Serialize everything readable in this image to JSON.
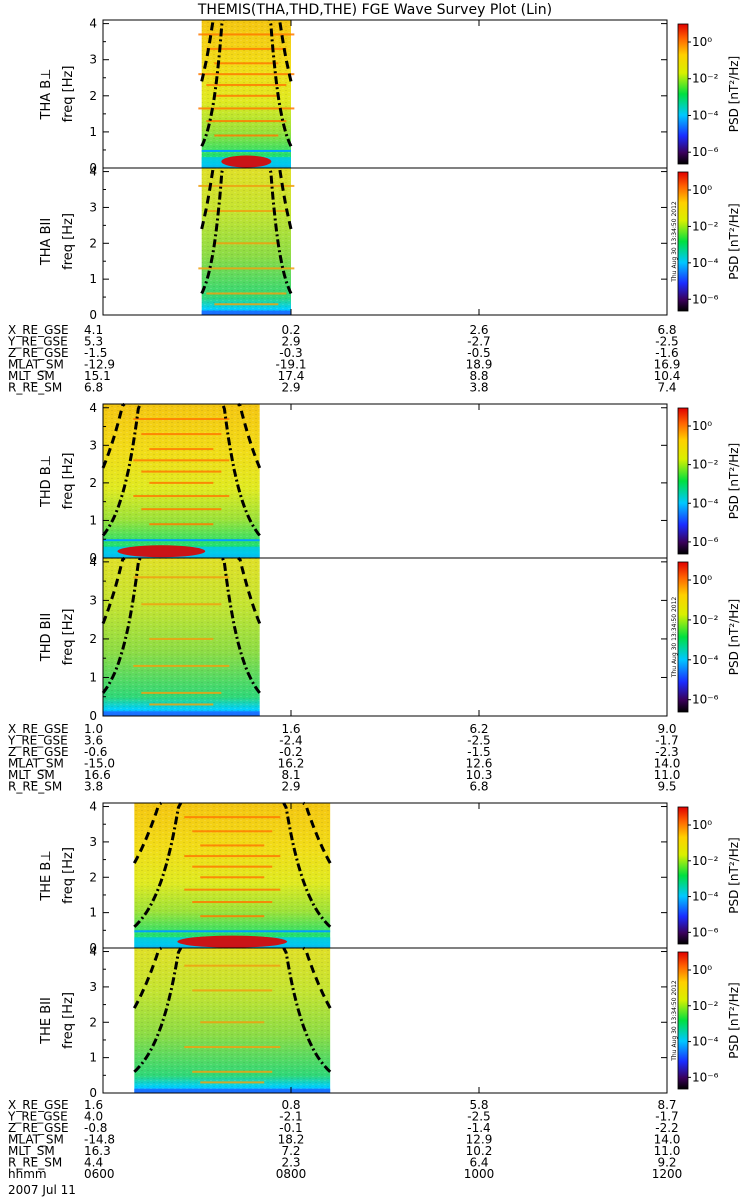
{
  "title": "THEMIS(THA,THD,THE) FGE Wave Survey Plot (Lin)",
  "footer": {
    "date": "2007 Jul 11",
    "stamp": "Thu Aug 30 13:34:50 2012"
  },
  "colorbar": {
    "label": "PSD [nT²/Hz]",
    "ticks": [
      "10⁰",
      "10⁻²",
      "10⁻⁴",
      "10⁻⁶"
    ]
  },
  "chart_data": [
    {
      "type": "heatmap",
      "probe": "THA",
      "panels": [
        {
          "ylabel_probe": "THA B⊥",
          "ylabel": "freq [Hz]"
        },
        {
          "ylabel_probe": "THA BII",
          "ylabel": "freq [Hz]"
        }
      ],
      "yticks": [
        "0",
        "1",
        "2",
        "3",
        "4"
      ],
      "ylim": [
        0,
        4.1
      ],
      "xlim": [
        "0600",
        "1200"
      ],
      "data_span": [
        "0703",
        "0800"
      ],
      "ephemeris": [
        {
          "name": "X_RE_GSE",
          "values": [
            "4.1",
            "0.2",
            "2.6",
            "6.8"
          ]
        },
        {
          "name": "Y_RE_GSE",
          "values": [
            "5.3",
            "2.9",
            "-2.7",
            "-2.5"
          ]
        },
        {
          "name": "Z_RE_GSE",
          "values": [
            "-1.5",
            "-0.3",
            "-0.5",
            "-1.6"
          ]
        },
        {
          "name": "MLAT_SM",
          "values": [
            "-12.9",
            "-19.1",
            "18.9",
            "16.9"
          ]
        },
        {
          "name": "MLT_SM",
          "values": [
            "15.1",
            "17.4",
            "8.8",
            "10.4"
          ]
        },
        {
          "name": "R_RE_SM",
          "values": [
            "6.8",
            "2.9",
            "3.8",
            "7.4"
          ]
        }
      ]
    },
    {
      "type": "heatmap",
      "probe": "THD",
      "panels": [
        {
          "ylabel_probe": "THD B⊥",
          "ylabel": "freq [Hz]"
        },
        {
          "ylabel_probe": "THD BII",
          "ylabel": "freq [Hz]"
        }
      ],
      "yticks": [
        "0",
        "1",
        "2",
        "3",
        "4"
      ],
      "ylim": [
        0,
        4.1
      ],
      "xlim": [
        "0600",
        "1200"
      ],
      "data_span": [
        "0600",
        "0740"
      ],
      "ephemeris": [
        {
          "name": "X_RE_GSE",
          "values": [
            "1.0",
            "1.6",
            "6.2",
            "9.0"
          ]
        },
        {
          "name": "Y_RE_GSE",
          "values": [
            "3.6",
            "-2.4",
            "-2.5",
            "-1.7"
          ]
        },
        {
          "name": "Z_RE_GSE",
          "values": [
            "-0.6",
            "-0.2",
            "-1.5",
            "-2.3"
          ]
        },
        {
          "name": "MLAT_SM",
          "values": [
            "-15.0",
            "16.2",
            "12.6",
            "14.0"
          ]
        },
        {
          "name": "MLT_SM",
          "values": [
            "16.6",
            "8.1",
            "10.3",
            "11.0"
          ]
        },
        {
          "name": "R_RE_SM",
          "values": [
            "3.8",
            "2.9",
            "6.8",
            "9.5"
          ]
        }
      ]
    },
    {
      "type": "heatmap",
      "probe": "THE",
      "panels": [
        {
          "ylabel_probe": "THE B⊥",
          "ylabel": "freq [Hz]"
        },
        {
          "ylabel_probe": "THE BII",
          "ylabel": "freq [Hz]"
        }
      ],
      "yticks": [
        "0",
        "1",
        "2",
        "3",
        "4"
      ],
      "ylim": [
        0,
        4.1
      ],
      "xlim": [
        "0600",
        "1200"
      ],
      "data_span": [
        "0620",
        "0825"
      ],
      "ephemeris": [
        {
          "name": "X_RE_GSE",
          "values": [
            "1.6",
            "0.8",
            "5.8",
            "8.7"
          ]
        },
        {
          "name": "Y_RE_GSE",
          "values": [
            "4.0",
            "-2.1",
            "-2.5",
            "-1.7"
          ]
        },
        {
          "name": "Z_RE_GSE",
          "values": [
            "-0.8",
            "-0.1",
            "-1.4",
            "-2.2"
          ]
        },
        {
          "name": "MLAT_SM",
          "values": [
            "-14.8",
            "18.2",
            "12.9",
            "14.0"
          ]
        },
        {
          "name": "MLT_SM",
          "values": [
            "16.3",
            "7.2",
            "10.2",
            "11.0"
          ]
        },
        {
          "name": "R_RE_SM",
          "values": [
            "4.4",
            "2.3",
            "6.4",
            "9.2"
          ]
        },
        {
          "name": "hhmm",
          "values": [
            "0600",
            "0800",
            "1000",
            "1200"
          ]
        }
      ]
    }
  ]
}
